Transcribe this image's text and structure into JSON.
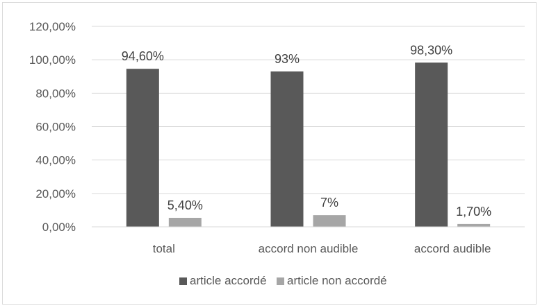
{
  "chart_data": {
    "type": "bar",
    "categories": [
      "total",
      "accord non audible",
      "accord audible"
    ],
    "series": [
      {
        "name": "article accordé",
        "color": "#595959",
        "values": [
          94.6,
          93,
          98.3
        ],
        "labels": [
          "94,60%",
          "93%",
          "98,30%"
        ]
      },
      {
        "name": "article non accordé",
        "color": "#a6a6a6",
        "values": [
          5.4,
          7,
          1.7
        ],
        "labels": [
          "5,40%",
          "7%",
          "1,70%"
        ]
      }
    ],
    "ylim": [
      0,
      120
    ],
    "yticks": [
      0,
      20,
      40,
      60,
      80,
      100,
      120
    ],
    "ytick_labels": [
      "0,00%",
      "20,00%",
      "40,00%",
      "60,00%",
      "80,00%",
      "100,00%",
      "120,00%"
    ],
    "grid": true,
    "legend_position": "bottom",
    "title": "",
    "xlabel": "",
    "ylabel": ""
  }
}
